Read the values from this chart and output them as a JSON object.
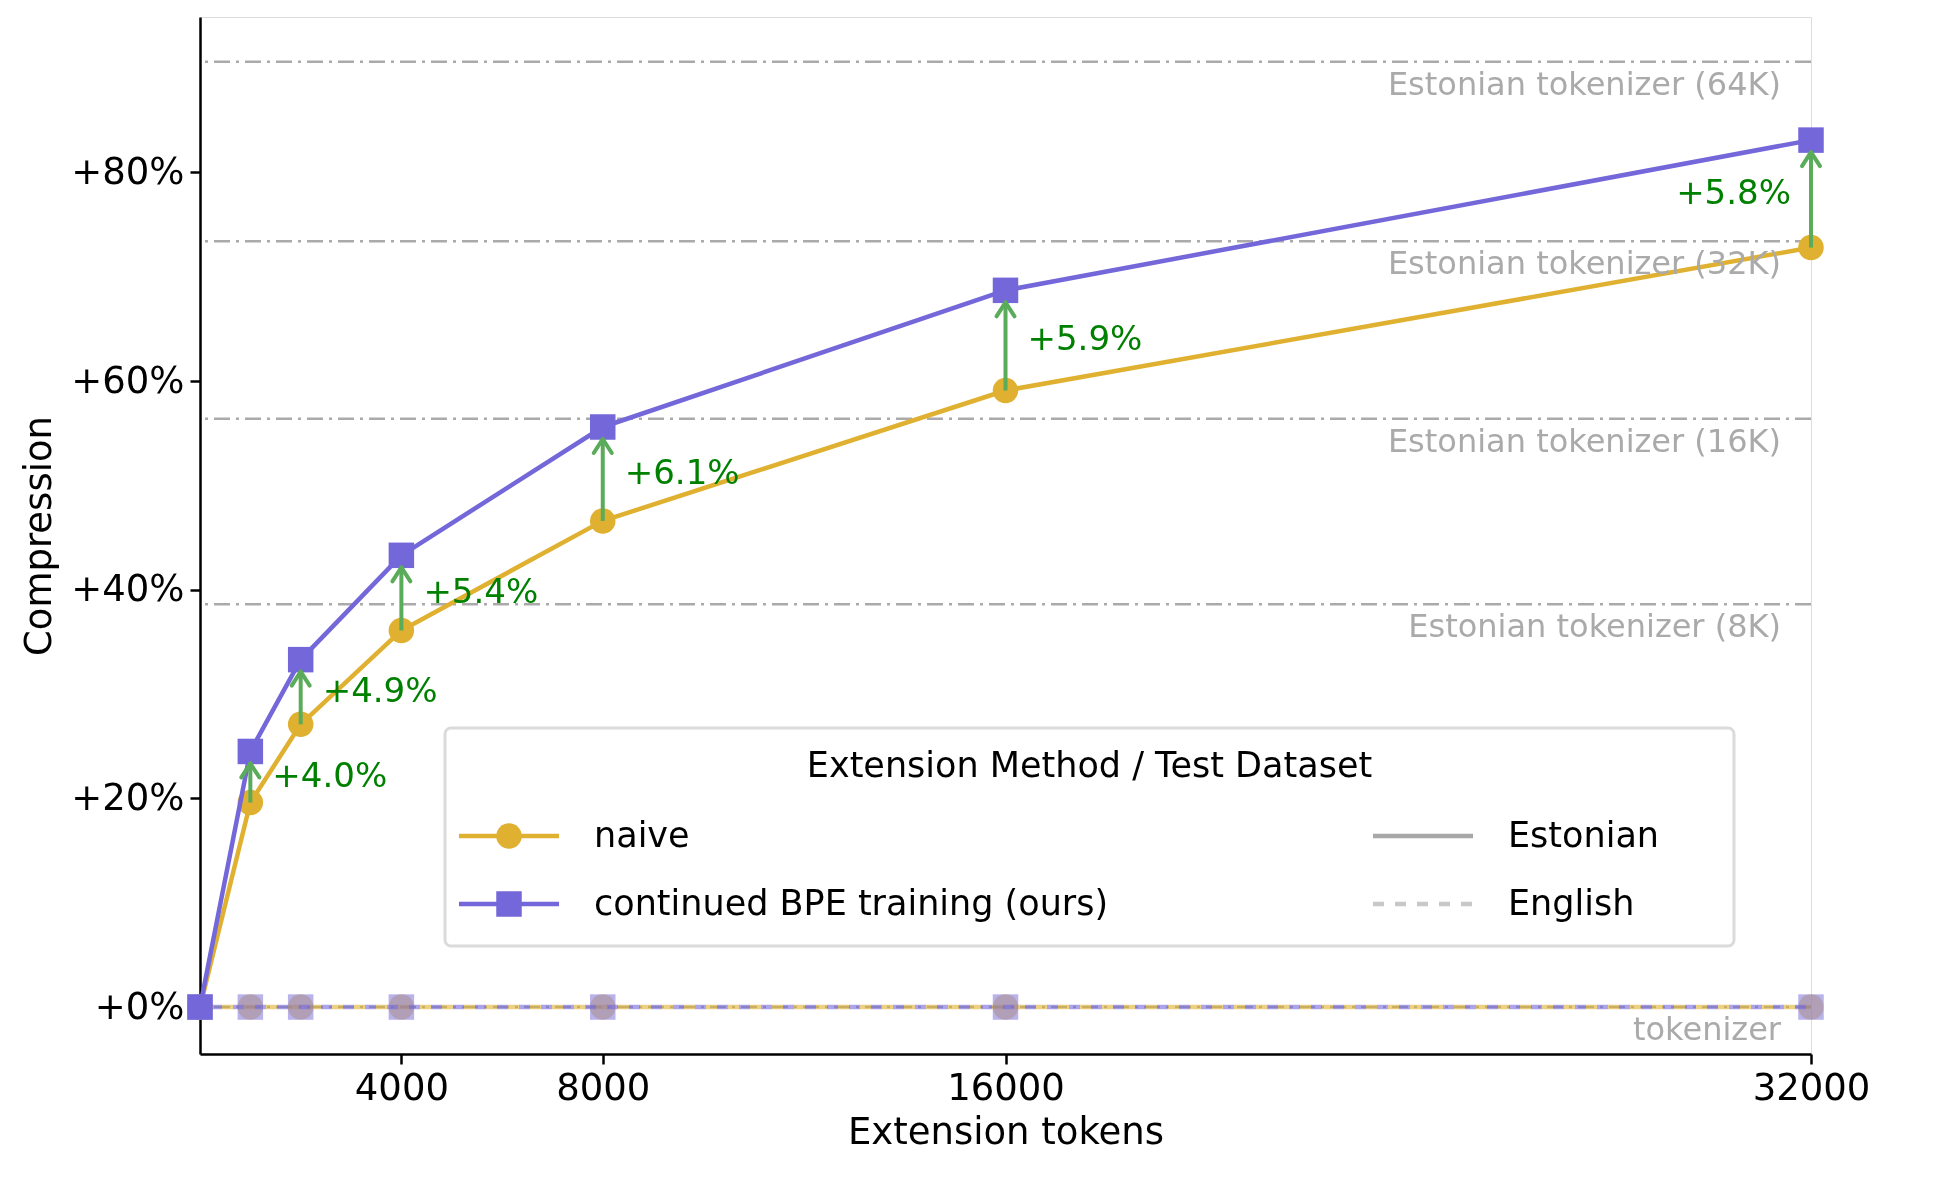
{
  "chart_data": {
    "type": "line",
    "xlabel": "Extension tokens",
    "ylabel": "Compression",
    "legend_title": "Extension Method / Test Dataset",
    "x": [
      0,
      1000,
      2000,
      4000,
      8000,
      16000,
      32000
    ],
    "series": [
      {
        "name": null,
        "color": "#e0b030",
        "values": [
          0,
          0,
          0,
          0,
          0,
          0,
          0
        ],
        "marker": "circle",
        "line_style": "dashed"
      },
      {
        "name": null,
        "color": "#7367d9",
        "values": [
          0,
          0,
          0,
          0,
          0,
          0,
          0
        ],
        "marker": "square",
        "line_style": "dashed"
      },
      {
        "name": "naive",
        "color": "#e0b030",
        "values": [
          0,
          19.6,
          27.1,
          36.1,
          46.6,
          59.1,
          72.8
        ],
        "marker": "circle",
        "line_style": "solid"
      },
      {
        "name": "continued BPE training (ours)",
        "color": "#7367d9",
        "values": [
          0,
          24.5,
          33.3,
          43.3,
          55.6,
          68.7,
          83.1
        ],
        "marker": "square",
        "line_style": "solid"
      },
      {
        "name": "Estonian",
        "color": "#a8a8a8",
        "values": [
          null,
          null,
          null,
          null,
          null,
          null,
          null
        ],
        "marker": "none",
        "line_style": "solid"
      },
      {
        "name": "English",
        "color": "#c8c8c8",
        "values": [
          null,
          null,
          null,
          null,
          null,
          null,
          null
        ],
        "marker": "none",
        "line_style": "dashed"
      }
    ],
    "xlim": [
      0,
      32000
    ],
    "xticks": [
      4000,
      8000,
      16000,
      32000
    ],
    "ylim": [
      -4.5,
      94.9
    ],
    "yticks": [
      {
        "value": 0,
        "label": "+0%"
      },
      {
        "value": 20,
        "label": "+20%"
      },
      {
        "value": 40,
        "label": "+40%"
      },
      {
        "value": 60,
        "label": "+60%"
      },
      {
        "value": 80,
        "label": "+80%"
      }
    ],
    "ref_lines": [
      {
        "axis": "y",
        "value": 90.6,
        "label": "Estonian tokenizer (64K)",
        "color": "#aaaaaa",
        "line_style": "dashdot"
      },
      {
        "axis": "y",
        "value": 73.4,
        "label": "Estonian tokenizer (32K)",
        "color": "#aaaaaa",
        "line_style": "dashdot"
      },
      {
        "axis": "y",
        "value": 56.4,
        "label": "Estonian tokenizer (16K)",
        "color": "#aaaaaa",
        "line_style": "dashdot"
      },
      {
        "axis": "y",
        "value": 38.6,
        "label": "Estonian tokenizer (8K)",
        "color": "#aaaaaa",
        "line_style": "dashdot"
      },
      {
        "axis": "y",
        "value": 0,
        "label": "tokenizer",
        "color": "#aaaaaa",
        "line_style": "dashdot"
      }
    ],
    "annotations": [
      {
        "text": "+4.0%",
        "x": 1000,
        "y": 24.5
      },
      {
        "text": "+4.9%",
        "x": 2000,
        "y": 33.3
      },
      {
        "text": "+5.4%",
        "x": 4000,
        "y": 43.3
      },
      {
        "text": "+6.1%",
        "x": 8000,
        "y": 55.6
      },
      {
        "text": "+5.9%",
        "x": 16000,
        "y": 68.7
      },
      {
        "text": "+5.8%",
        "x": 32000,
        "y": 83.1
      }
    ],
    "grid": false,
    "legend": "bottom right"
  }
}
